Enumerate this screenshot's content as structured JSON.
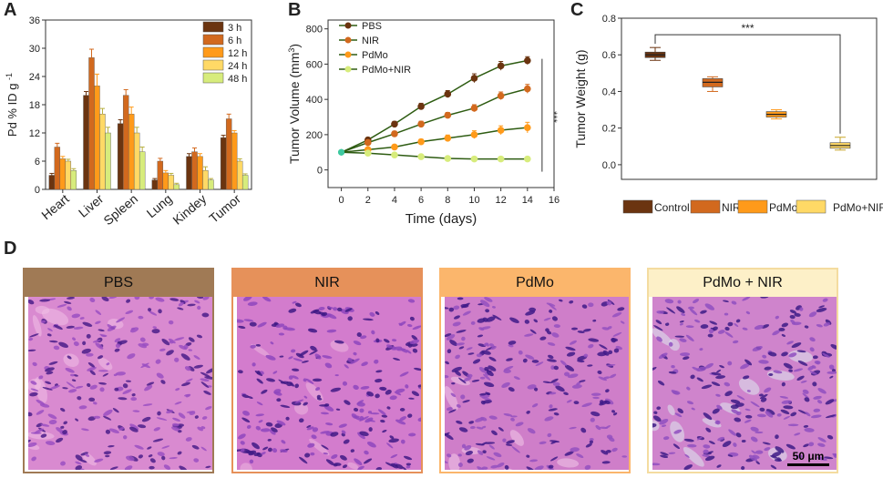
{
  "panels": {
    "A": "A",
    "B": "B",
    "C": "C",
    "D": "D"
  },
  "chart_data": [
    {
      "id": "A",
      "type": "bar",
      "title": "",
      "xlabel": "",
      "ylabel": "Pd % ID g",
      "ylabel_sup": "-1",
      "ylim": [
        0,
        36
      ],
      "yticks": [
        "0",
        "6",
        "12",
        "18",
        "24",
        "30",
        "36"
      ],
      "categories": [
        "Heart",
        "Liver",
        "Spleen",
        "Lung",
        "Kindey",
        "Tumor"
      ],
      "series": [
        {
          "name": "3 h",
          "color": "#6b3410",
          "values": [
            3,
            20,
            14,
            2,
            7,
            11
          ],
          "errors": [
            0.4,
            0.8,
            0.8,
            0.3,
            0.6,
            0.5
          ]
        },
        {
          "name": "6 h",
          "color": "#d2691e",
          "values": [
            9,
            28,
            20,
            6,
            8,
            15
          ],
          "errors": [
            0.8,
            1.8,
            1.2,
            0.6,
            0.8,
            1.0
          ]
        },
        {
          "name": "12 h",
          "color": "#ff9a1a",
          "values": [
            6.5,
            22,
            16,
            3.5,
            7,
            12
          ],
          "errors": [
            0.5,
            2.5,
            1.5,
            0.5,
            0.6,
            0.5
          ]
        },
        {
          "name": "24 h",
          "color": "#ffd966",
          "values": [
            6,
            16,
            12,
            3,
            4,
            6
          ],
          "errors": [
            0.4,
            1.2,
            1.2,
            0.4,
            0.8,
            0.5
          ]
        },
        {
          "name": "48 h",
          "color": "#d7ec7c",
          "values": [
            4,
            12,
            8,
            1,
            2,
            3
          ],
          "errors": [
            0.4,
            1.2,
            1.0,
            0.3,
            0.3,
            0.3
          ]
        }
      ]
    },
    {
      "id": "B",
      "type": "line",
      "title": "",
      "xlabel": "Time (days)",
      "ylabel": "Tumor Volume (mm",
      "ylabel_sup": "3",
      "ylabel_end": ")",
      "x": [
        0,
        2,
        4,
        6,
        8,
        10,
        12,
        14
      ],
      "xlim": [
        -1,
        16
      ],
      "ylim": [
        -100,
        850
      ],
      "xticks": [
        "0",
        "2",
        "4",
        "6",
        "8",
        "10",
        "12",
        "14",
        "16"
      ],
      "yticks": [
        "0",
        "200",
        "400",
        "600",
        "800"
      ],
      "significance": "***",
      "series": [
        {
          "name": "PBS",
          "color": "#6b3410",
          "values": [
            100,
            170,
            260,
            360,
            430,
            520,
            590,
            620
          ],
          "errors": [
            8,
            12,
            15,
            18,
            20,
            25,
            25,
            22
          ]
        },
        {
          "name": "NIR",
          "color": "#d2691e",
          "values": [
            100,
            155,
            205,
            260,
            310,
            350,
            420,
            460
          ],
          "errors": [
            8,
            12,
            14,
            16,
            16,
            20,
            22,
            25
          ]
        },
        {
          "name": "PdMo",
          "color": "#ff9a1a",
          "values": [
            100,
            115,
            130,
            160,
            180,
            200,
            225,
            240
          ],
          "errors": [
            8,
            10,
            12,
            14,
            18,
            22,
            25,
            30
          ]
        },
        {
          "name": "PdMo+NIR",
          "color": "#d7ec7c",
          "values": [
            100,
            95,
            85,
            75,
            65,
            62,
            62,
            62
          ],
          "errors": [
            6,
            8,
            8,
            8,
            8,
            8,
            8,
            8
          ]
        }
      ]
    },
    {
      "id": "C",
      "type": "box",
      "title": "",
      "xlabel": "",
      "ylabel": "Tumor Weight (g)",
      "ylim": [
        -0.08,
        0.8
      ],
      "yticks": [
        "0.0",
        "0.2",
        "0.4",
        "0.6",
        "0.8"
      ],
      "significance": "***",
      "categories": [
        "Control",
        "NIR",
        "PdMo",
        "PdMo+NIR"
      ],
      "boxes": [
        {
          "name": "Control",
          "color": "#6b3410",
          "min": 0.57,
          "q1": 0.585,
          "median": 0.6,
          "q3": 0.615,
          "max": 0.64
        },
        {
          "name": "NIR",
          "color": "#d2691e",
          "min": 0.4,
          "q1": 0.425,
          "median": 0.45,
          "q3": 0.47,
          "max": 0.48
        },
        {
          "name": "PdMo",
          "color": "#ff9a1a",
          "min": 0.25,
          "q1": 0.26,
          "median": 0.275,
          "q3": 0.29,
          "max": 0.3
        },
        {
          "name": "PdMo+NIR",
          "color": "#ffd966",
          "min": 0.08,
          "q1": 0.09,
          "median": 0.105,
          "q3": 0.12,
          "max": 0.15
        }
      ]
    }
  ],
  "histology": {
    "panels": [
      {
        "label": "PBS",
        "header_color": "#a07a55",
        "border_color": "#a07a55"
      },
      {
        "label": "NIR",
        "header_color": "#e6915a",
        "border_color": "#e6915a"
      },
      {
        "label": "PdMo",
        "header_color": "#fbb66c",
        "border_color": "#fbb66c"
      },
      {
        "label": "PdMo + NIR",
        "header_color": "#fdf0c8",
        "border_color": "#f4dca0"
      }
    ],
    "scale_bar": "50 μm"
  }
}
